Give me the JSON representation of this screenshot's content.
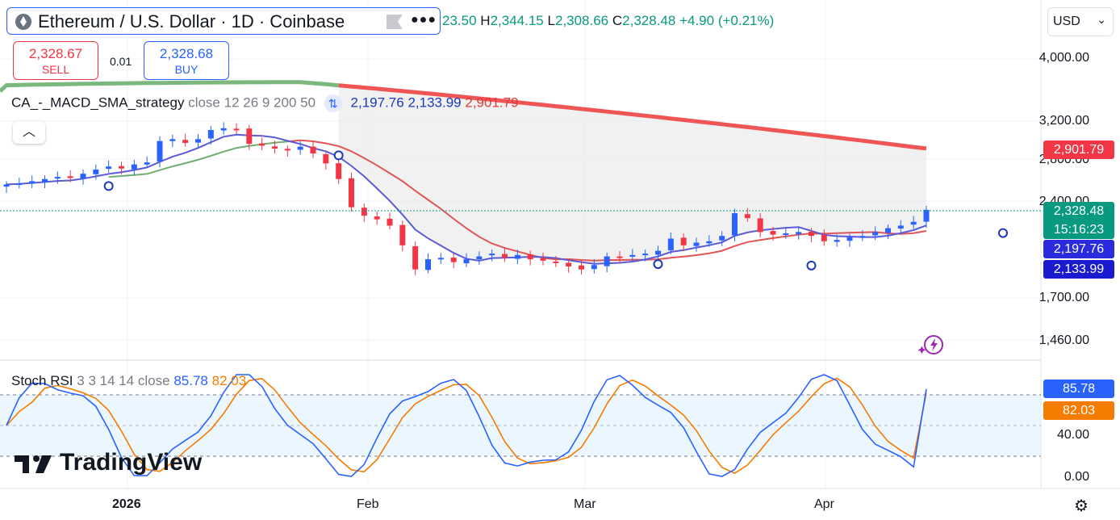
{
  "header": {
    "symbol_title": "Ethereum / U.S. Dollar · 1D · Coinbase",
    "more_icon": "more-icon",
    "ohlc": {
      "o_val": "23.50",
      "h_key": "H",
      "h_val": "2,344.15",
      "l_key": "L",
      "l_val": "2,308.66",
      "c_key": "C",
      "c_val": "2,328.48",
      "change": "+4.90 (+0.21%)"
    },
    "currency": "USD"
  },
  "trade": {
    "sell_price": "2,328.67",
    "sell_label": "SELL",
    "spread": "0.01",
    "buy_price": "2,328.68",
    "buy_label": "BUY"
  },
  "indicator": {
    "name": "CA_-_MACD_SMA_strategy",
    "params": "close 12 26 9 200 50",
    "v1": "2,197.76",
    "v2": "2,133.99",
    "v3": "2,901.79"
  },
  "price_axis": [
    "4,000.00",
    "3,200.00",
    "2,800.00",
    "2,400.00",
    "1,700.00",
    "1,460.00"
  ],
  "price_tags": {
    "sma200": "2,901.79",
    "last": "2,328.48",
    "countdown": "15:16:23",
    "v1": "2,197.76",
    "v2": "2,133.99"
  },
  "stoch": {
    "name": "Stoch RSI",
    "params": "3 3 14 14 close",
    "k": "85.78",
    "d": "82.03",
    "axis": [
      "40.00",
      "0.00"
    ],
    "tag_k": "85.78",
    "tag_d": "82.03"
  },
  "time_axis": [
    "2026",
    "Feb",
    "Mar",
    "Apr"
  ],
  "logo": "TradingView",
  "colors": {
    "up": "#2962ff",
    "down": "#f23645",
    "sma200": "#f05555",
    "fast": "#5b5bd6",
    "slow_red": "#e05555",
    "stoch_k": "#2962ff",
    "stoch_d": "#f57c00"
  },
  "chart_data": {
    "type": "candlestick",
    "series": [
      {
        "name": "ETHUSD",
        "ohlc_close": [
          2550,
          2560,
          2580,
          2600,
          2620,
          2610,
          2650,
          2690,
          2720,
          2700,
          2740,
          2760,
          2980,
          3000,
          2960,
          3000,
          3100,
          3120,
          3110,
          2950,
          2930,
          2900,
          2880,
          2920,
          2850,
          2750,
          2600,
          2350,
          2280,
          2250,
          2200,
          2050,
          1880,
          1950,
          1960,
          1930,
          1950,
          1970,
          1990,
          1960,
          1980,
          1950,
          1940,
          1930,
          1900,
          1880,
          1910,
          1970,
          1960,
          1980,
          1990,
          2010,
          2100,
          2050,
          2070,
          2080,
          2120,
          2300,
          2260,
          2150,
          2130,
          2140,
          2150,
          2120,
          2080,
          2090,
          2110,
          2120,
          2150,
          2180,
          2200,
          2230,
          2328.48
        ]
      }
    ],
    "stoch_k_last": 85.78,
    "stoch_d_last": 82.03
  }
}
